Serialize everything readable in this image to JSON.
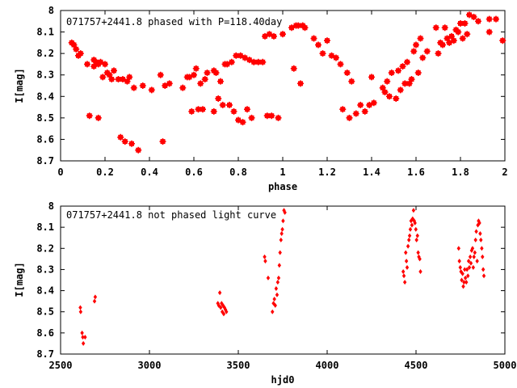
{
  "colors": {
    "marker": "#ff0000",
    "axes": "#000000",
    "background": "#ffffff"
  },
  "chart_data": [
    {
      "type": "scatter",
      "title": "071757+2441.8 phased with P=118.40day",
      "xlabel": "phase",
      "ylabel": "I[mag]",
      "xlim": [
        0,
        2
      ],
      "ylim": [
        8.7,
        8
      ],
      "y_inverted": true,
      "x_ticks": [
        0,
        0.2,
        0.4,
        0.6,
        0.8,
        1,
        1.2,
        1.4,
        1.6,
        1.8,
        2
      ],
      "x_tick_labels": [
        "0",
        "0.2",
        "0.4",
        "0.6",
        "0.8",
        "1",
        "1.2",
        "1.4",
        "1.6",
        "1.8",
        "2"
      ],
      "y_ticks": [
        8,
        8.1,
        8.2,
        8.3,
        8.4,
        8.5,
        8.6,
        8.7
      ],
      "y_tick_labels": [
        "8",
        "8.1",
        "8.2",
        "8.3",
        "8.4",
        "8.5",
        "8.6",
        "8.7"
      ],
      "grid": false,
      "legend": "none",
      "marker": "filled-square-star",
      "points": [
        [
          0.05,
          8.15
        ],
        [
          0.06,
          8.16
        ],
        [
          0.07,
          8.18
        ],
        [
          0.08,
          8.21
        ],
        [
          0.09,
          8.2
        ],
        [
          0.12,
          8.25
        ],
        [
          0.13,
          8.49
        ],
        [
          0.15,
          8.23
        ],
        [
          0.15,
          8.26
        ],
        [
          0.16,
          8.24
        ],
        [
          0.17,
          8.5
        ],
        [
          0.17,
          8.25
        ],
        [
          0.18,
          8.24
        ],
        [
          0.19,
          8.31
        ],
        [
          0.2,
          8.25
        ],
        [
          0.21,
          8.29
        ],
        [
          0.22,
          8.3
        ],
        [
          0.23,
          8.32
        ],
        [
          0.24,
          8.28
        ],
        [
          0.26,
          8.32
        ],
        [
          0.27,
          8.59
        ],
        [
          0.28,
          8.32
        ],
        [
          0.29,
          8.61
        ],
        [
          0.3,
          8.33
        ],
        [
          0.31,
          8.31
        ],
        [
          0.32,
          8.62
        ],
        [
          0.33,
          8.36
        ],
        [
          0.35,
          8.65
        ],
        [
          0.37,
          8.35
        ],
        [
          0.41,
          8.37
        ],
        [
          0.45,
          8.3
        ],
        [
          0.46,
          8.61
        ],
        [
          0.47,
          8.35
        ],
        [
          0.49,
          8.34
        ],
        [
          0.55,
          8.36
        ],
        [
          0.57,
          8.31
        ],
        [
          0.58,
          8.31
        ],
        [
          0.59,
          8.47
        ],
        [
          0.6,
          8.3
        ],
        [
          0.61,
          8.27
        ],
        [
          0.62,
          8.46
        ],
        [
          0.63,
          8.34
        ],
        [
          0.64,
          8.46
        ],
        [
          0.65,
          8.32
        ],
        [
          0.66,
          8.29
        ],
        [
          0.69,
          8.47
        ],
        [
          0.69,
          8.28
        ],
        [
          0.7,
          8.29
        ],
        [
          0.71,
          8.41
        ],
        [
          0.72,
          8.33
        ],
        [
          0.73,
          8.44
        ],
        [
          0.74,
          8.25
        ],
        [
          0.75,
          8.25
        ],
        [
          0.76,
          8.44
        ],
        [
          0.77,
          8.24
        ],
        [
          0.78,
          8.47
        ],
        [
          0.79,
          8.21
        ],
        [
          0.8,
          8.51
        ],
        [
          0.81,
          8.21
        ],
        [
          0.82,
          8.52
        ],
        [
          0.83,
          8.22
        ],
        [
          0.84,
          8.46
        ],
        [
          0.85,
          8.23
        ],
        [
          0.86,
          8.5
        ],
        [
          0.87,
          8.24
        ],
        [
          0.89,
          8.24
        ],
        [
          0.91,
          8.24
        ],
        [
          0.92,
          8.12
        ],
        [
          0.93,
          8.49
        ],
        [
          0.94,
          8.11
        ],
        [
          0.95,
          8.49
        ],
        [
          0.96,
          8.12
        ],
        [
          0.98,
          8.5
        ],
        [
          1,
          8.11
        ],
        [
          1.04,
          8.08
        ],
        [
          1.05,
          8.27
        ],
        [
          1.06,
          8.07
        ],
        [
          1.07,
          8.07
        ],
        [
          1.08,
          8.34
        ],
        [
          1.09,
          8.07
        ],
        [
          1.1,
          8.08
        ],
        [
          1.14,
          8.13
        ],
        [
          1.16,
          8.16
        ],
        [
          1.18,
          8.2
        ],
        [
          1.2,
          8.14
        ],
        [
          1.22,
          8.21
        ],
        [
          1.24,
          8.22
        ],
        [
          1.26,
          8.25
        ],
        [
          1.27,
          8.46
        ],
        [
          1.29,
          8.29
        ],
        [
          1.3,
          8.5
        ],
        [
          1.31,
          8.33
        ],
        [
          1.33,
          8.48
        ],
        [
          1.35,
          8.44
        ],
        [
          1.37,
          8.47
        ],
        [
          1.39,
          8.44
        ],
        [
          1.4,
          8.31
        ],
        [
          1.41,
          8.43
        ],
        [
          1.45,
          8.36
        ],
        [
          1.46,
          8.38
        ],
        [
          1.47,
          8.33
        ],
        [
          1.48,
          8.4
        ],
        [
          1.49,
          8.29
        ],
        [
          1.51,
          8.41
        ],
        [
          1.52,
          8.28
        ],
        [
          1.53,
          8.37
        ],
        [
          1.54,
          8.26
        ],
        [
          1.55,
          8.34
        ],
        [
          1.56,
          8.24
        ],
        [
          1.57,
          8.34
        ],
        [
          1.58,
          8.32
        ],
        [
          1.59,
          8.19
        ],
        [
          1.6,
          8.16
        ],
        [
          1.61,
          8.29
        ],
        [
          1.62,
          8.13
        ],
        [
          1.63,
          8.22
        ],
        [
          1.65,
          8.19
        ],
        [
          1.69,
          8.08
        ],
        [
          1.7,
          8.2
        ],
        [
          1.71,
          8.15
        ],
        [
          1.72,
          8.16
        ],
        [
          1.73,
          8.08
        ],
        [
          1.74,
          8.13
        ],
        [
          1.75,
          8.15
        ],
        [
          1.76,
          8.12
        ],
        [
          1.77,
          8.14
        ],
        [
          1.78,
          8.09
        ],
        [
          1.79,
          8.1
        ],
        [
          1.8,
          8.06
        ],
        [
          1.81,
          8.13
        ],
        [
          1.82,
          8.06
        ],
        [
          1.83,
          8.11
        ],
        [
          1.84,
          8.02
        ],
        [
          1.86,
          8.03
        ],
        [
          1.88,
          8.05
        ],
        [
          1.93,
          8.1
        ],
        [
          1.93,
          8.04
        ],
        [
          1.96,
          8.04
        ],
        [
          1.99,
          8.14
        ]
      ]
    },
    {
      "type": "scatter",
      "title": "071757+2441.8 not phased light curve",
      "xlabel": "hjd0",
      "ylabel": "I[mag]",
      "xlim": [
        2500,
        5000
      ],
      "ylim": [
        8.7,
        8
      ],
      "y_inverted": true,
      "x_ticks": [
        2500,
        3000,
        3500,
        4000,
        4500,
        5000
      ],
      "x_tick_labels": [
        "2500",
        "3000",
        "3500",
        "4000",
        "4500",
        "5000"
      ],
      "y_ticks": [
        8,
        8.1,
        8.2,
        8.3,
        8.4,
        8.5,
        8.6,
        8.7
      ],
      "y_tick_labels": [
        "8",
        "8.1",
        "8.2",
        "8.3",
        "8.4",
        "8.5",
        "8.6",
        "8.7"
      ],
      "grid": false,
      "legend": "none",
      "marker": "small-diamond",
      "points": [
        [
          2611,
          8.48
        ],
        [
          2613,
          8.5
        ],
        [
          2621,
          8.6
        ],
        [
          2625,
          8.62
        ],
        [
          2628,
          8.65
        ],
        [
          2638,
          8.62
        ],
        [
          2691,
          8.45
        ],
        [
          2695,
          8.43
        ],
        [
          3385,
          8.46
        ],
        [
          3390,
          8.47
        ],
        [
          3396,
          8.41
        ],
        [
          3401,
          8.48
        ],
        [
          3406,
          8.46
        ],
        [
          3410,
          8.5
        ],
        [
          3414,
          8.47
        ],
        [
          3418,
          8.51
        ],
        [
          3422,
          8.48
        ],
        [
          3428,
          8.49
        ],
        [
          3433,
          8.5
        ],
        [
          3648,
          8.24
        ],
        [
          3652,
          8.26
        ],
        [
          3668,
          8.34
        ],
        [
          3692,
          8.5
        ],
        [
          3698,
          8.46
        ],
        [
          3703,
          8.44
        ],
        [
          3708,
          8.47
        ],
        [
          3713,
          8.39
        ],
        [
          3718,
          8.42
        ],
        [
          3722,
          8.36
        ],
        [
          3727,
          8.34
        ],
        [
          3731,
          8.28
        ],
        [
          3735,
          8.22
        ],
        [
          3740,
          8.16
        ],
        [
          3744,
          8.13
        ],
        [
          3748,
          8.11
        ],
        [
          3752,
          8.07
        ],
        [
          3757,
          8.02
        ],
        [
          3762,
          8.03
        ],
        [
          4428,
          8.31
        ],
        [
          4432,
          8.33
        ],
        [
          4437,
          8.36
        ],
        [
          4442,
          8.22
        ],
        [
          4446,
          8.26
        ],
        [
          4450,
          8.29
        ],
        [
          4455,
          8.19
        ],
        [
          4460,
          8.16
        ],
        [
          4464,
          8.14
        ],
        [
          4468,
          8.11
        ],
        [
          4472,
          8.07
        ],
        [
          4477,
          8.09
        ],
        [
          4481,
          8.06
        ],
        [
          4486,
          8.02
        ],
        [
          4490,
          8.07
        ],
        [
          4494,
          8.08
        ],
        [
          4499,
          8.11
        ],
        [
          4503,
          8.16
        ],
        [
          4508,
          8.14
        ],
        [
          4512,
          8.22
        ],
        [
          4516,
          8.24
        ],
        [
          4521,
          8.25
        ],
        [
          4525,
          8.31
        ],
        [
          4740,
          8.2
        ],
        [
          4744,
          8.26
        ],
        [
          4749,
          8.29
        ],
        [
          4753,
          8.31
        ],
        [
          4757,
          8.35
        ],
        [
          4762,
          8.32
        ],
        [
          4766,
          8.38
        ],
        [
          4770,
          8.36
        ],
        [
          4774,
          8.3
        ],
        [
          4778,
          8.34
        ],
        [
          4783,
          8.36
        ],
        [
          4787,
          8.3
        ],
        [
          4792,
          8.33
        ],
        [
          4796,
          8.26
        ],
        [
          4800,
          8.29
        ],
        [
          4805,
          8.24
        ],
        [
          4809,
          8.27
        ],
        [
          4813,
          8.21
        ],
        [
          4818,
          8.2
        ],
        [
          4822,
          8.29
        ],
        [
          4826,
          8.24
        ],
        [
          4831,
          8.22
        ],
        [
          4835,
          8.16
        ],
        [
          4839,
          8.12
        ],
        [
          4844,
          8.26
        ],
        [
          4848,
          8.09
        ],
        [
          4852,
          8.07
        ],
        [
          4857,
          8.08
        ],
        [
          4861,
          8.13
        ],
        [
          4865,
          8.16
        ],
        [
          4870,
          8.2
        ],
        [
          4874,
          8.24
        ],
        [
          4878,
          8.3
        ],
        [
          4882,
          8.33
        ]
      ]
    }
  ]
}
